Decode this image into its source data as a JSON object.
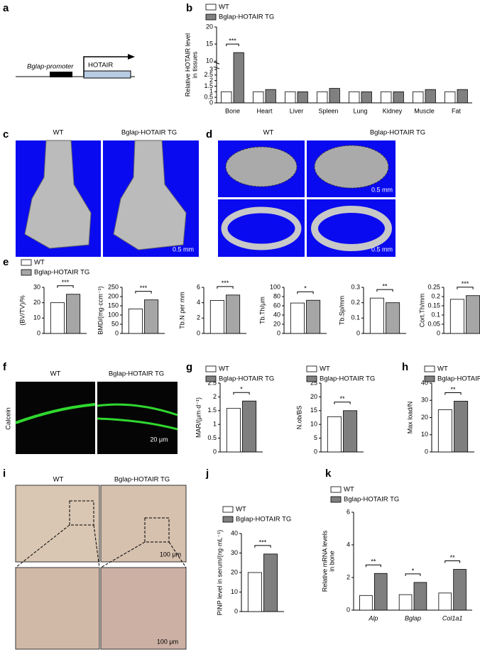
{
  "diagram": {
    "panel": "a",
    "promoter": "Bglap-promoter",
    "gene": "HOTAIR"
  },
  "images": [
    {
      "panel": "c",
      "labels": [
        "WT",
        "Bglap-HOTAIR TG"
      ],
      "scale_bars": [
        "0.5 mm"
      ]
    },
    {
      "panel": "d",
      "labels": [
        "WT",
        "Bglap-HOTAIR TG"
      ],
      "scale_bars": [
        "0.5 mm",
        "0.5 mm"
      ]
    },
    {
      "panel": "f",
      "labels": [
        "WT",
        "Bglap-HOTAIR TG"
      ],
      "stain": "Calcein",
      "scale_bars": [
        "20 μm"
      ]
    },
    {
      "panel": "i",
      "labels": [
        "WT",
        "Bglap-HOTAIR TG"
      ],
      "scale_bars": [
        "100 μm",
        "100 μm"
      ]
    }
  ],
  "chart_data": [
    {
      "type": "bar",
      "panel": "b",
      "y_label": [
        "Relative HOTAIR level",
        "in tissues"
      ],
      "categories": [
        "Bone",
        "Heart",
        "Liver",
        "Spleen",
        "Lung",
        "Kidney",
        "Muscle",
        "Fat"
      ],
      "series": [
        {
          "name": "WT",
          "color": "#ffffff",
          "values": [
            1.0,
            1.0,
            1.0,
            1.0,
            1.0,
            1.0,
            1.0,
            1.0
          ]
        },
        {
          "name": "Bglap-HOTAIR TG",
          "color": "#808080",
          "values": [
            12.5,
            1.2,
            1.0,
            1.3,
            1.0,
            1.0,
            1.2,
            1.2
          ]
        }
      ],
      "ylim": [
        0,
        20
      ],
      "axis_break": [
        3,
        10
      ],
      "yticks": [
        0,
        0.5,
        1,
        1.5,
        2,
        2.5,
        3,
        10,
        15,
        20
      ],
      "significance": [
        "***"
      ],
      "legend": true
    },
    {
      "type": "bar",
      "panel": "e",
      "y_label": [
        "(BV/TV)/%"
      ],
      "series": [
        {
          "name": "WT",
          "color": "#ffffff",
          "values": [
            20
          ]
        },
        {
          "name": "Bglap-HOTAIR TG",
          "color": "#a6a6a6",
          "values": [
            25.5
          ]
        }
      ],
      "ylim": [
        0,
        30
      ],
      "yticks": [
        0,
        10,
        20,
        30
      ],
      "significance": [
        "***"
      ],
      "legend": true
    },
    {
      "type": "bar",
      "y_label": [
        "BMD/(mg·ccm⁻¹)"
      ],
      "series": [
        {
          "color": "#ffffff",
          "values": [
            133
          ]
        },
        {
          "color": "#a6a6a6",
          "values": [
            182
          ]
        }
      ],
      "ylim": [
        0,
        250
      ],
      "yticks": [
        0,
        50,
        100,
        150,
        200,
        250
      ],
      "significance": [
        "***"
      ]
    },
    {
      "type": "bar",
      "y_label": [
        "Tb.N per mm"
      ],
      "series": [
        {
          "color": "#ffffff",
          "values": [
            4.3
          ]
        },
        {
          "color": "#a6a6a6",
          "values": [
            5.0
          ]
        }
      ],
      "ylim": [
        0,
        6
      ],
      "yticks": [
        0,
        2,
        4,
        6
      ],
      "significance": [
        "***"
      ]
    },
    {
      "type": "bar",
      "y_label": [
        "Tb.Th/μm"
      ],
      "series": [
        {
          "color": "#ffffff",
          "values": [
            66
          ]
        },
        {
          "color": "#a6a6a6",
          "values": [
            72
          ]
        }
      ],
      "ylim": [
        0,
        100
      ],
      "yticks": [
        0,
        20,
        40,
        60,
        80,
        100
      ],
      "significance": [
        "*"
      ]
    },
    {
      "type": "bar",
      "y_label": [
        "Tb.Sp/mm"
      ],
      "series": [
        {
          "color": "#ffffff",
          "values": [
            0.23
          ]
        },
        {
          "color": "#a6a6a6",
          "values": [
            0.2
          ]
        }
      ],
      "ylim": [
        0,
        0.3
      ],
      "yticks": [
        0,
        0.1,
        0.2,
        0.3
      ],
      "significance": [
        "**"
      ]
    },
    {
      "type": "bar",
      "y_label": [
        "Cort.Th/mm"
      ],
      "series": [
        {
          "color": "#ffffff",
          "values": [
            0.185
          ]
        },
        {
          "color": "#a6a6a6",
          "values": [
            0.205
          ]
        }
      ],
      "ylim": [
        0,
        0.25
      ],
      "yticks": [
        0,
        0.05,
        0.1,
        0.15,
        0.2,
        0.25
      ],
      "significance": [
        "***"
      ]
    },
    {
      "type": "bar",
      "panel": "g",
      "y_label": [
        "MAR/(μm·d⁻¹)"
      ],
      "series": [
        {
          "name": "WT",
          "color": "#ffffff",
          "values": [
            1.58
          ]
        },
        {
          "name": "Bglap-HOTAIR TG",
          "color": "#7f7f7f",
          "values": [
            1.85
          ]
        }
      ],
      "ylim": [
        0,
        2.5
      ],
      "yticks": [
        0,
        0.5,
        1,
        1.5,
        2,
        2.5
      ],
      "significance": [
        "*"
      ],
      "legend": true
    },
    {
      "type": "bar",
      "y_label": [
        "N.ob/BS"
      ],
      "series": [
        {
          "name": "WT",
          "color": "#ffffff",
          "values": [
            12.8
          ]
        },
        {
          "name": "Bglap-HOTAIR TG",
          "color": "#7f7f7f",
          "values": [
            15.0
          ]
        }
      ],
      "ylim": [
        0,
        25
      ],
      "yticks": [
        0,
        5,
        10,
        15,
        20,
        25
      ],
      "significance": [
        "**"
      ],
      "legend": true
    },
    {
      "type": "bar",
      "panel": "h",
      "y_label": [
        "Max load/N"
      ],
      "series": [
        {
          "name": "WT",
          "color": "#ffffff",
          "values": [
            24.5
          ]
        },
        {
          "name": "Bglap-HOTAIR TG",
          "color": "#7f7f7f",
          "values": [
            29.5
          ]
        }
      ],
      "ylim": [
        0,
        40
      ],
      "yticks": [
        0,
        10,
        20,
        30,
        40
      ],
      "significance": [
        "**"
      ],
      "legend": true
    },
    {
      "type": "bar",
      "panel": "j",
      "y_label": [
        "PINP level in serum/(ng·mL⁻¹)"
      ],
      "series": [
        {
          "name": "WT",
          "color": "#ffffff",
          "values": [
            20
          ]
        },
        {
          "name": "Bglap-HOTAIR TG",
          "color": "#7f7f7f",
          "values": [
            29.5
          ]
        }
      ],
      "ylim": [
        0,
        40
      ],
      "yticks": [
        0,
        10,
        20,
        30,
        40
      ],
      "significance": [
        "***"
      ],
      "legend": true
    },
    {
      "type": "bar",
      "panel": "k",
      "y_label": [
        "Relative mRNA levels",
        "in bone"
      ],
      "categories": [
        "Alp",
        "Bglap",
        "Col1a1"
      ],
      "series": [
        {
          "name": "WT",
          "color": "#ffffff",
          "values": [
            0.9,
            0.95,
            1.05
          ]
        },
        {
          "name": "Bglap-HOTAIR TG",
          "color": "#7f7f7f",
          "values": [
            2.25,
            1.7,
            2.5
          ]
        }
      ],
      "ylim": [
        0,
        6
      ],
      "yticks": [
        0,
        2,
        4,
        6
      ],
      "significance": [
        "**",
        "*",
        "**"
      ],
      "legend": true
    }
  ]
}
